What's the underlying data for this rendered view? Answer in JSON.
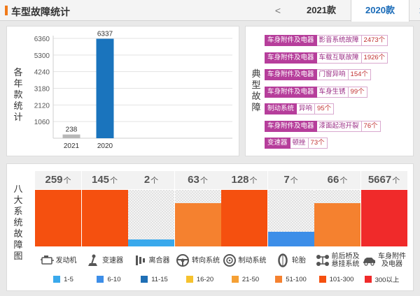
{
  "header": {
    "title": "车型故障统计",
    "prev_arrow": "<",
    "next_arrow": ">",
    "tabs": [
      {
        "label": "2021款",
        "active": false
      },
      {
        "label": "2020款",
        "active": true
      }
    ]
  },
  "yearly": {
    "ylabel_chars": [
      "各",
      "年",
      "款",
      "统",
      "计"
    ],
    "chart_data": {
      "type": "bar",
      "categories": [
        "2021",
        "2020"
      ],
      "values": [
        238,
        6337
      ],
      "value_labels": [
        "238",
        "6337"
      ],
      "yticks": [
        "1060",
        "2120",
        "3180",
        "4240",
        "5300",
        "6360"
      ],
      "ylim": [
        0,
        6360
      ],
      "grid": true,
      "bar_colors": [
        "#b8b8b8",
        "#1a74bd"
      ]
    }
  },
  "typical": {
    "label_chars": [
      "典",
      "型",
      "故",
      "障"
    ],
    "items": [
      {
        "tag": "车身附件及电器",
        "name": "影音系统故障",
        "count": "2473个"
      },
      {
        "tag": "车身附件及电器",
        "name": "车载互联故障",
        "count": "1926个"
      },
      {
        "tag": "车身附件及电器",
        "name": "门窗异响",
        "count": "154个"
      },
      {
        "tag": "车身附件及电器",
        "name": "车身生锈",
        "count": "99个"
      },
      {
        "tag": "制动系统",
        "name": "异响",
        "count": "95个"
      },
      {
        "tag": "车身附件及电器",
        "name": "漆面起泡开裂",
        "count": "76个"
      },
      {
        "tag": "变速器",
        "name": "顿挫",
        "count": "73个"
      }
    ]
  },
  "eight": {
    "label_chars": [
      "八",
      "大",
      "系",
      "统",
      "故",
      "障",
      "图"
    ],
    "unit": "个",
    "systems": [
      {
        "name": "发动机",
        "name2": "",
        "count": "259",
        "fill": 1.0,
        "color": "#f5500f",
        "icon": "engine-icon"
      },
      {
        "name": "变速器",
        "name2": "",
        "count": "145",
        "fill": 1.0,
        "color": "#f5500f",
        "icon": "gearshift-icon"
      },
      {
        "name": "离合器",
        "name2": "",
        "count": "2",
        "fill": 0.12,
        "color": "#3aa9ec",
        "icon": "clutch-icon"
      },
      {
        "name": "转向系统",
        "name2": "",
        "count": "63",
        "fill": 0.77,
        "color": "#f5812f",
        "icon": "steering-wheel-icon"
      },
      {
        "name": "制动系统",
        "name2": "",
        "count": "128",
        "fill": 1.0,
        "color": "#f5500f",
        "icon": "brake-disc-icon"
      },
      {
        "name": "轮胎",
        "name2": "",
        "count": "7",
        "fill": 0.26,
        "color": "#3d8ee8",
        "icon": "tire-icon"
      },
      {
        "name": "前后桥及",
        "name2": "悬挂系统",
        "count": "66",
        "fill": 0.77,
        "color": "#f5812f",
        "icon": "axle-icon"
      },
      {
        "name": "车身附件",
        "name2": "及电器",
        "count": "5667",
        "fill": 1.0,
        "color": "#f02a2a",
        "icon": "car-body-icon"
      }
    ],
    "legend": [
      {
        "label": "1-5",
        "color": "#3aa9ec"
      },
      {
        "label": "6-10",
        "color": "#3d8ee8"
      },
      {
        "label": "11-15",
        "color": "#1f6fb5"
      },
      {
        "label": "16-20",
        "color": "#f6c22e"
      },
      {
        "label": "21-50",
        "color": "#f5a035"
      },
      {
        "label": "51-100",
        "color": "#f5812f"
      },
      {
        "label": "101-300",
        "color": "#f5500f"
      },
      {
        "label": "300以上",
        "color": "#f02a2a"
      }
    ]
  }
}
